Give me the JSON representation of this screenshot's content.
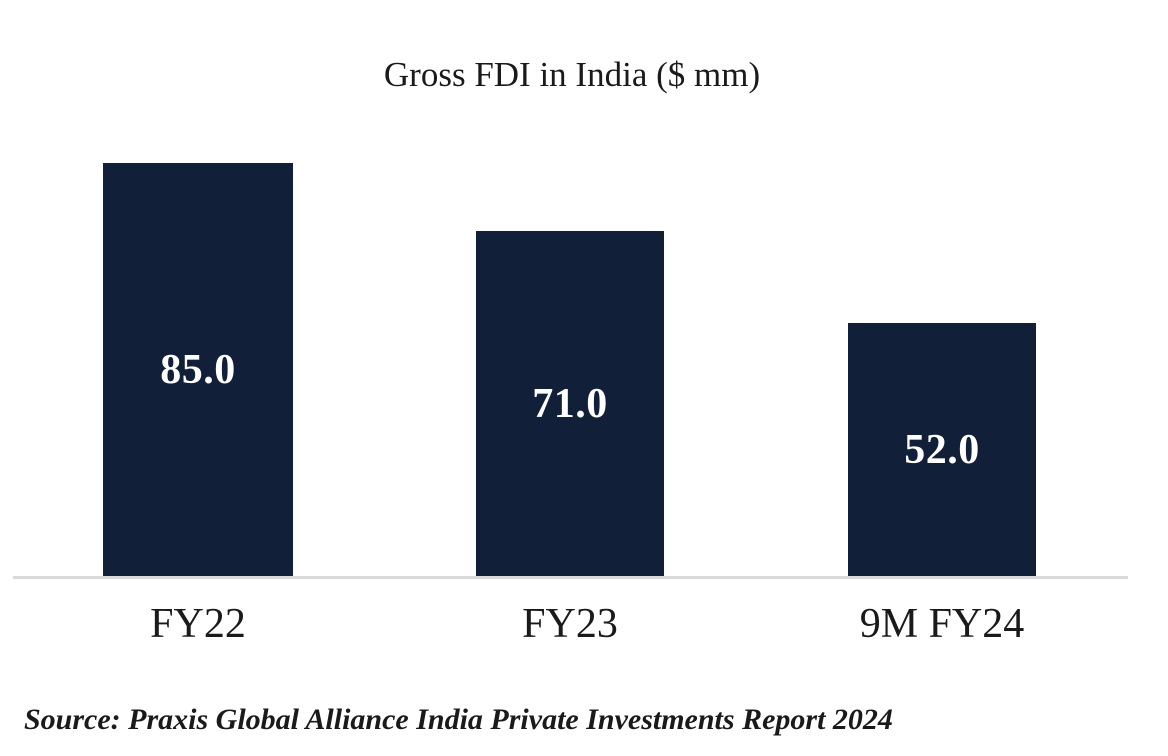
{
  "title": "Gross FDI in India ($ mm)",
  "source_note": "Source: Praxis Global Alliance India Private Investments Report 2024",
  "colors": {
    "bar": "#121F38",
    "value_label": "#FFFFFF",
    "axis_line": "#D9D9D9",
    "text": "#1A1A1A",
    "background": "#FFFFFF"
  },
  "chart_data": {
    "type": "bar",
    "title": "Gross FDI in India ($ mm)",
    "categories": [
      "FY22",
      "FY23",
      "9M FY24"
    ],
    "values": [
      85.0,
      71.0,
      52.0
    ],
    "value_labels": [
      "85.0",
      "71.0",
      "52.0"
    ],
    "xlabel": "",
    "ylabel": "",
    "ylim": [
      0,
      85
    ],
    "grid": false,
    "legend": "none",
    "value_label_position": "inside-center",
    "source": "Source: Praxis Global Alliance India Private Investments Report 2024"
  }
}
